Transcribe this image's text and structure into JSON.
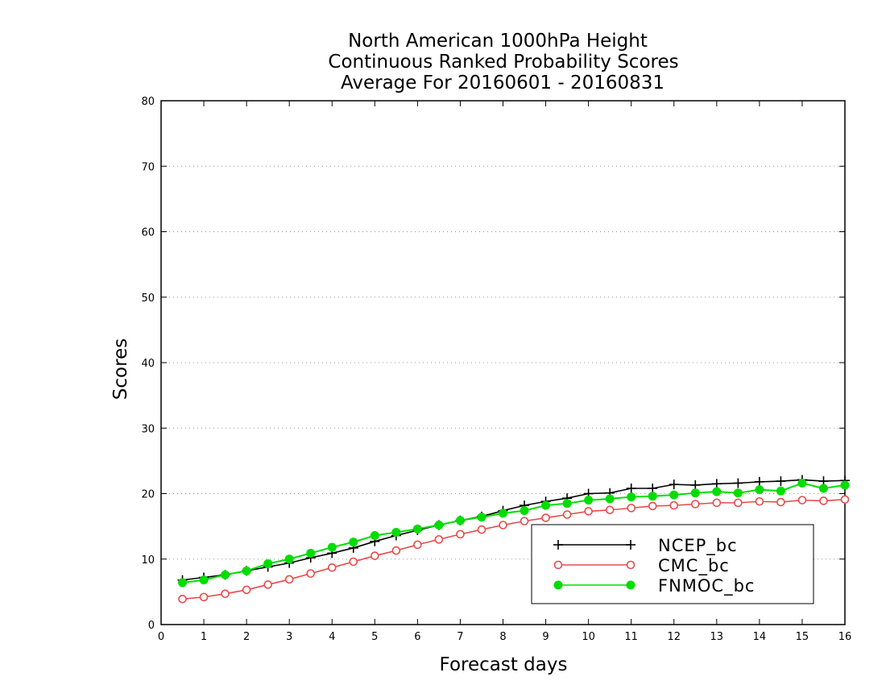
{
  "chart_data": {
    "type": "line",
    "title": [
      "North American 1000hPa Height",
      "Continuous Ranked Probability Scores",
      "Average For 20160601 - 20160831"
    ],
    "xlabel": "Forecast days",
    "ylabel": "Scores",
    "xlim": [
      0,
      16
    ],
    "ylim": [
      0,
      80
    ],
    "xticks": [
      "0",
      "1",
      "2",
      "3",
      "4",
      "5",
      "6",
      "7",
      "8",
      "9",
      "10",
      "11",
      "12",
      "13",
      "14",
      "15",
      "16"
    ],
    "yticks": [
      "0",
      "10",
      "20",
      "30",
      "40",
      "50",
      "60",
      "70",
      "80"
    ],
    "grid": "horizontal-dotted",
    "legend_position": "bottom-right",
    "x": [
      0.5,
      1,
      1.5,
      2,
      2.5,
      3,
      3.5,
      4,
      4.5,
      5,
      5.5,
      6,
      6.5,
      7,
      7.5,
      8,
      8.5,
      9,
      9.5,
      10,
      10.5,
      11,
      11.5,
      12,
      12.5,
      13,
      13.5,
      14,
      14.5,
      15,
      15.5,
      16
    ],
    "series": [
      {
        "name": "NCEP_bc",
        "color": "#000000",
        "marker": "plus",
        "values": [
          6.8,
          7.2,
          7.6,
          8.2,
          8.8,
          9.4,
          10.2,
          10.9,
          11.7,
          12.7,
          13.6,
          14.4,
          15.2,
          15.9,
          16.5,
          17.4,
          18.2,
          18.8,
          19.3,
          20.0,
          20.1,
          20.8,
          20.8,
          21.4,
          21.3,
          21.5,
          21.6,
          21.8,
          21.9,
          22.1,
          21.9,
          22.0
        ]
      },
      {
        "name": "CMC_bc",
        "color": "#e84a4a",
        "marker": "open-circle",
        "values": [
          3.9,
          4.2,
          4.7,
          5.3,
          6.1,
          6.9,
          7.8,
          8.7,
          9.6,
          10.5,
          11.3,
          12.2,
          13.0,
          13.8,
          14.5,
          15.2,
          15.8,
          16.3,
          16.8,
          17.3,
          17.5,
          17.8,
          18.1,
          18.2,
          18.4,
          18.6,
          18.6,
          18.8,
          18.7,
          19.0,
          18.9,
          19.1
        ]
      },
      {
        "name": "FNMOC_bc",
        "color": "#00dd00",
        "marker": "filled-circle",
        "values": [
          6.4,
          6.8,
          7.6,
          8.2,
          9.3,
          10.0,
          10.9,
          11.8,
          12.6,
          13.6,
          14.1,
          14.6,
          15.2,
          15.9,
          16.4,
          17.0,
          17.4,
          18.2,
          18.5,
          19.0,
          19.2,
          19.5,
          19.6,
          19.8,
          20.1,
          20.3,
          20.1,
          20.6,
          20.4,
          21.6,
          20.8,
          21.3
        ]
      }
    ]
  }
}
